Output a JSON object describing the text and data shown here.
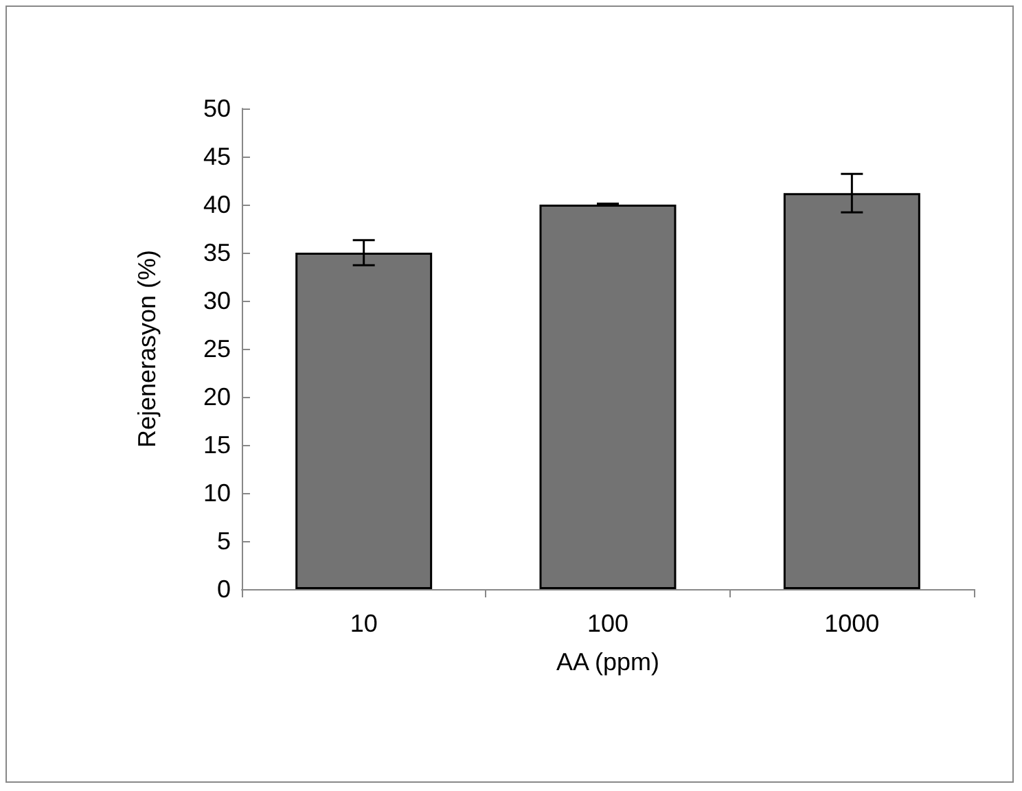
{
  "chart_data": {
    "type": "bar",
    "xlabel": "AA (ppm)",
    "ylabel": "Rejenerasyon (%)",
    "categories": [
      "10",
      "100",
      "1000"
    ],
    "series": [
      {
        "color": "#737373",
        "values": [
          35,
          40,
          41.2
        ],
        "errors": [
          1.3,
          0.1,
          2
        ]
      }
    ],
    "ylim": [
      0,
      50
    ],
    "yticks": [
      0,
      5,
      10,
      15,
      20,
      25,
      30,
      35,
      40,
      45,
      50
    ],
    "grid": false
  }
}
